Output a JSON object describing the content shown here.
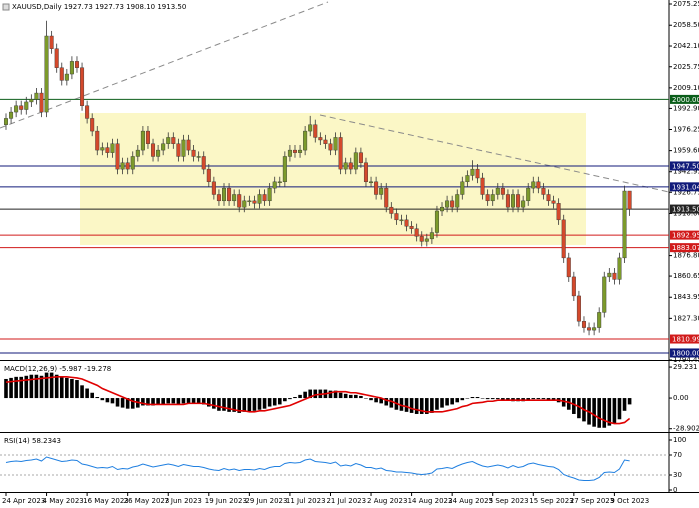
{
  "chart_data": [
    {
      "type": "candlestick",
      "title": "XAUUSD,Daily 1927.73 1927.73 1908.10 1913.50",
      "up_color": "#7c9a2b",
      "down_color": "#d4492c",
      "categories": [
        "24 Apr 2023",
        null,
        null,
        null,
        null,
        null,
        null,
        null,
        "4 May 2023",
        null,
        null,
        null,
        null,
        null,
        null,
        null,
        "16 May 2023",
        null,
        null,
        null,
        null,
        null,
        null,
        null,
        "26 May 2023",
        null,
        null,
        null,
        null,
        null,
        null,
        null,
        "7 Jun 2023",
        null,
        null,
        null,
        null,
        null,
        null,
        null,
        "19 Jun 2023",
        null,
        null,
        null,
        null,
        null,
        null,
        null,
        "29 Jun 2023",
        null,
        null,
        null,
        null,
        null,
        null,
        null,
        "11 Jul 2023",
        null,
        null,
        null,
        null,
        null,
        null,
        null,
        "21 Jul 2023",
        null,
        null,
        null,
        null,
        null,
        null,
        null,
        "2 Aug 2023",
        null,
        null,
        null,
        null,
        null,
        null,
        null,
        "14 Aug 2023",
        null,
        null,
        null,
        null,
        null,
        null,
        null,
        "24 Aug 2023",
        null,
        null,
        null,
        null,
        null,
        null,
        null,
        "5 Sep 2023",
        null,
        null,
        null,
        null,
        null,
        null,
        null,
        "15 Sep 2023",
        null,
        null,
        null,
        null,
        null,
        null,
        null,
        "27 Sep 2023",
        null,
        null,
        null,
        null,
        null,
        null,
        null,
        "9 Oct 2023",
        null,
        null,
        null
      ],
      "open": [
        1980,
        1985,
        1990,
        1995,
        1992,
        1998,
        2000,
        2005,
        1990,
        2050,
        2040,
        2025,
        2015,
        2020,
        2030,
        2025,
        1995,
        1985,
        1975,
        1960,
        1962,
        1958,
        1965,
        1945,
        1950,
        1945,
        1955,
        1960,
        1975,
        1965,
        1955,
        1960,
        1965,
        1970,
        1965,
        1955,
        1968,
        1960,
        1955,
        1955,
        1945,
        1935,
        1925,
        1920,
        1930,
        1920,
        1925,
        1915,
        1920,
        1920,
        1918,
        1925,
        1920,
        1930,
        1935,
        1935,
        1955,
        1960,
        1958,
        1960,
        1975,
        1980,
        1970,
        1968,
        1965,
        1960,
        1970,
        1945,
        1950,
        1945,
        1958,
        1950,
        1935,
        1935,
        1925,
        1930,
        1915,
        1910,
        1905,
        1905,
        1900,
        1898,
        1892,
        1888,
        1890,
        1895,
        1912,
        1915,
        1920,
        1915,
        1925,
        1935,
        1940,
        1945,
        1938,
        1925,
        1920,
        1925,
        1930,
        1925,
        1915,
        1925,
        1915,
        1920,
        1930,
        1935,
        1930,
        1925,
        1920,
        1918,
        1905,
        1875,
        1860,
        1845,
        1825,
        1820,
        1818,
        1820,
        1832,
        1860,
        1863,
        1858,
        1875,
        1927.73
      ],
      "high": [
        1989,
        1994,
        1999,
        1999,
        2002,
        2004,
        2009,
        2009,
        2062,
        2054,
        2044,
        2029,
        2024,
        2034,
        2034,
        2029,
        1999,
        1989,
        1979,
        1966,
        1966,
        1969,
        1969,
        1954,
        1954,
        1959,
        1964,
        1979,
        1979,
        1969,
        1964,
        1969,
        1974,
        1974,
        1969,
        1972,
        1972,
        1964,
        1959,
        1959,
        1949,
        1939,
        1929,
        1934,
        1934,
        1929,
        1929,
        1924,
        1924,
        1924,
        1929,
        1929,
        1934,
        1939,
        1939,
        1959,
        1964,
        1964,
        1964,
        1979,
        1987,
        1984,
        1974,
        1972,
        1969,
        1974,
        1974,
        1954,
        1954,
        1962,
        1962,
        1954,
        1939,
        1939,
        1934,
        1934,
        1919,
        1914,
        1909,
        1909,
        1904,
        1902,
        1896,
        1894,
        1899,
        1916,
        1919,
        1924,
        1924,
        1929,
        1939,
        1944,
        1952,
        1949,
        1942,
        1929,
        1929,
        1934,
        1934,
        1929,
        1929,
        1929,
        1924,
        1934,
        1939,
        1939,
        1934,
        1929,
        1924,
        1922,
        1909,
        1879,
        1864,
        1849,
        1829,
        1824,
        1824,
        1836,
        1864,
        1867,
        1867,
        1879,
        1932,
        1927.73
      ],
      "low": [
        1976,
        1981,
        1986,
        1988,
        1988,
        1994,
        1996,
        1986,
        1986,
        2036,
        2021,
        2011,
        2011,
        2016,
        2021,
        1991,
        1981,
        1971,
        1956,
        1956,
        1954,
        1954,
        1941,
        1941,
        1941,
        1941,
        1951,
        1956,
        1961,
        1951,
        1951,
        1956,
        1961,
        1961,
        1951,
        1951,
        1956,
        1951,
        1951,
        1941,
        1931,
        1921,
        1916,
        1916,
        1916,
        1916,
        1911,
        1911,
        1916,
        1914,
        1914,
        1916,
        1916,
        1926,
        1931,
        1931,
        1951,
        1954,
        1954,
        1956,
        1971,
        1966,
        1964,
        1961,
        1956,
        1956,
        1941,
        1941,
        1941,
        1941,
        1946,
        1931,
        1931,
        1921,
        1921,
        1911,
        1906,
        1901,
        1901,
        1896,
        1894,
        1888,
        1884,
        1884,
        1886,
        1891,
        1908,
        1911,
        1911,
        1911,
        1921,
        1931,
        1936,
        1934,
        1921,
        1916,
        1916,
        1921,
        1921,
        1911,
        1911,
        1911,
        1911,
        1916,
        1926,
        1926,
        1921,
        1916,
        1914,
        1901,
        1871,
        1856,
        1841,
        1821,
        1816,
        1814,
        1814,
        1816,
        1828,
        1856,
        1854,
        1854,
        1871,
        1908.1
      ],
      "close": [
        1985,
        1990,
        1995,
        1992,
        1998,
        2000,
        2005,
        1990,
        2050,
        2040,
        2025,
        2015,
        2020,
        2030,
        2025,
        1995,
        1985,
        1975,
        1960,
        1962,
        1958,
        1965,
        1945,
        1950,
        1945,
        1955,
        1960,
        1975,
        1965,
        1955,
        1960,
        1965,
        1970,
        1965,
        1955,
        1968,
        1960,
        1955,
        1955,
        1945,
        1935,
        1925,
        1920,
        1930,
        1920,
        1925,
        1915,
        1920,
        1920,
        1918,
        1925,
        1920,
        1930,
        1935,
        1935,
        1955,
        1960,
        1958,
        1960,
        1975,
        1980,
        1970,
        1968,
        1965,
        1960,
        1970,
        1945,
        1950,
        1945,
        1958,
        1950,
        1935,
        1935,
        1925,
        1930,
        1915,
        1910,
        1905,
        1905,
        1900,
        1898,
        1892,
        1888,
        1890,
        1895,
        1912,
        1915,
        1920,
        1915,
        1925,
        1935,
        1940,
        1945,
        1938,
        1925,
        1920,
        1925,
        1930,
        1925,
        1915,
        1925,
        1915,
        1920,
        1930,
        1935,
        1930,
        1925,
        1920,
        1918,
        1905,
        1875,
        1860,
        1845,
        1825,
        1820,
        1818,
        1820,
        1832,
        1860,
        1863,
        1858,
        1875,
        1927.73,
        1913.5
      ],
      "ylim": [
        1794.45,
        2078.4
      ],
      "yticks": [
        2075.25,
        {
          "value": 2058.5,
          "label": "2058.50"
        },
        {
          "value": 2042.1,
          "label": "2042.10"
        },
        2025.75,
        {
          "value": 2009.1,
          "label": "2009.10"
        },
        {
          "value": 1992.9,
          "label": "1992.90"
        },
        1976.25,
        {
          "value": 1959.6,
          "label": "1959.60"
        },
        1942.95,
        1926.75,
        {
          "value": 1910,
          "label": "1910.00"
        },
        {
          "value": 1876.8,
          "label": "1876.80"
        },
        1860.65,
        1843.95,
        {
          "value": 1827.3,
          "label": "1827.30"
        },
        1794.45
      ],
      "levels": [
        {
          "value": 2000,
          "label": "2000.00",
          "color": "#0b5e1a"
        },
        {
          "value": 1947.5,
          "label": "1947.50",
          "color": "#101a7a"
        },
        {
          "value": 1931.04,
          "color": "#101a7a"
        },
        {
          "value": 1913.5,
          "label": "1913.50",
          "color": "#222222"
        },
        {
          "value": 1892.95,
          "color": "#d11a1a"
        },
        {
          "value": 1883.07,
          "color": "#d11a1a"
        },
        {
          "value": 1810.99,
          "color": "#d11a1a"
        },
        {
          "value": 1800,
          "label": "1800.00",
          "color": "#101a7a"
        }
      ]
    },
    {
      "type": "macd",
      "series": [
        {
          "name": "MACD(12,26,9)",
          "type": "bar",
          "color": "#000000",
          "values": [
            18,
            19,
            20,
            20,
            21,
            22,
            22,
            21,
            24,
            24,
            22,
            20,
            19,
            18,
            17,
            12,
            9,
            5,
            1,
            -2,
            -4,
            -5,
            -8,
            -9,
            -10,
            -10,
            -9,
            -7,
            -7,
            -7,
            -6,
            -6,
            -5,
            -5,
            -6,
            -5,
            -5,
            -5,
            -5,
            -6,
            -8,
            -10,
            -12,
            -12,
            -13,
            -13,
            -14,
            -13,
            -13,
            -12,
            -11,
            -10,
            -8,
            -7,
            -6,
            -3,
            -1,
            1,
            3,
            6,
            8,
            8,
            8,
            8,
            7,
            7,
            5,
            4,
            3,
            3,
            2,
            0,
            -2,
            -4,
            -5,
            -7,
            -9,
            -11,
            -12,
            -13,
            -14,
            -15,
            -15,
            -15,
            -14,
            -11,
            -9,
            -7,
            -6,
            -4,
            -2,
            0,
            1,
            1,
            0,
            -1,
            -1,
            -1,
            -2,
            -2,
            -3,
            -3,
            -3,
            -2,
            -1,
            -1,
            -1,
            -2,
            -2,
            -4,
            -8,
            -11,
            -15,
            -19,
            -22,
            -25,
            -27,
            -28,
            -28,
            -26,
            -24,
            -20,
            -12,
            -5.987
          ]
        },
        {
          "type": "line",
          "color": "#e00000",
          "values": [
            15,
            15.5,
            16,
            16.5,
            17,
            17.5,
            18,
            18.5,
            19,
            19.5,
            20,
            20,
            20,
            19.5,
            19,
            18,
            16,
            14,
            12,
            9,
            7,
            5,
            3,
            1,
            -1,
            -3,
            -4,
            -5,
            -6,
            -6,
            -6,
            -6,
            -6,
            -6,
            -6,
            -6,
            -5,
            -5,
            -5,
            -5,
            -6,
            -7,
            -8,
            -9,
            -10,
            -11,
            -12,
            -12,
            -13,
            -13,
            -12,
            -12,
            -11,
            -10,
            -9,
            -8,
            -7,
            -5,
            -3,
            -1,
            1,
            3,
            3.5,
            4,
            5,
            6,
            6,
            6,
            5,
            5,
            4,
            3,
            2,
            1,
            0,
            -2,
            -3,
            -5,
            -7,
            -8,
            -10,
            -11,
            -12,
            -13,
            -13,
            -13,
            -13,
            -12,
            -11,
            -10,
            -8,
            -7,
            -5,
            -4.5,
            -4,
            -3,
            -3,
            -2,
            -2,
            -2,
            -2,
            -2,
            -2,
            -2,
            -2,
            -2,
            -2,
            -2,
            -2,
            -2,
            -3,
            -4,
            -6,
            -8,
            -11,
            -13,
            -16,
            -19,
            -21,
            -23,
            -24,
            -24,
            -23,
            -19.278
          ]
        }
      ],
      "ylim": [
        -32,
        34
      ],
      "yticks": [
        29.231,
        {
          "value": 0,
          "label": "0.00"
        },
        -28.902
      ]
    },
    {
      "type": "line",
      "series": [
        {
          "name": "RSI(14)",
          "color": "#1f7fe0",
          "values": [
            55,
            57,
            58,
            57,
            59,
            60,
            62,
            58,
            66,
            63,
            60,
            57,
            58,
            60,
            59,
            52,
            50,
            47,
            44,
            45,
            44,
            47,
            41,
            43,
            42,
            46,
            48,
            52,
            49,
            46,
            48,
            50,
            52,
            50,
            47,
            51,
            49,
            47,
            47,
            45,
            42,
            40,
            39,
            43,
            40,
            42,
            39,
            41,
            41,
            40,
            43,
            41,
            45,
            47,
            47,
            53,
            55,
            54,
            55,
            60,
            62,
            57,
            56,
            55,
            53,
            56,
            48,
            50,
            48,
            53,
            50,
            45,
            45,
            42,
            44,
            39,
            38,
            36,
            36,
            35,
            34,
            32,
            31,
            32,
            34,
            42,
            43,
            45,
            43,
            48,
            52,
            55,
            57,
            52,
            48,
            46,
            48,
            50,
            48,
            44,
            49,
            45,
            47,
            52,
            54,
            51,
            49,
            47,
            46,
            41,
            31,
            27,
            24,
            20,
            19,
            19,
            20,
            25,
            35,
            36,
            35,
            42,
            60,
            58.2343
          ]
        }
      ],
      "ylim": [
        -4,
        112
      ],
      "yticks": [
        100,
        70,
        30,
        0
      ]
    }
  ]
}
